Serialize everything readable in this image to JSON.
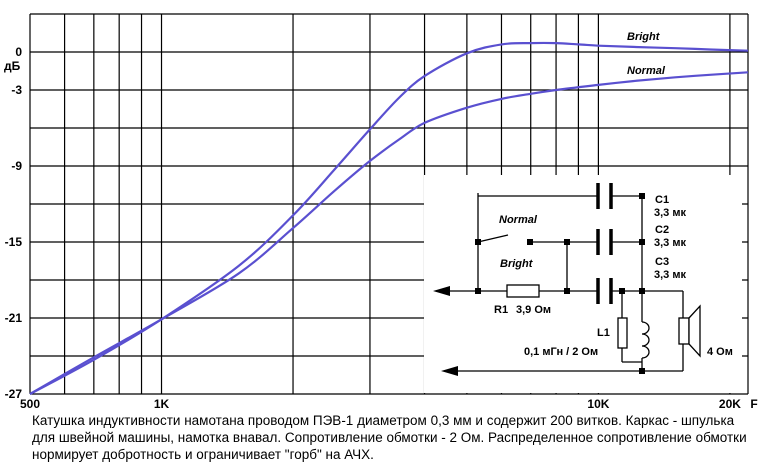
{
  "chart_data": {
    "type": "line",
    "xlabel": "F",
    "ylabel": "дБ",
    "x_scale": "log",
    "xlim": [
      500,
      22000
    ],
    "ylim": [
      -27,
      3
    ],
    "grid": true,
    "x_ticks": [
      {
        "value": 500,
        "label": "500"
      },
      {
        "value": 1000,
        "label": "1K"
      },
      {
        "value": 10000,
        "label": "10K"
      },
      {
        "value": 20000,
        "label": "20K"
      }
    ],
    "x_grid": [
      500,
      600,
      700,
      800,
      900,
      1000,
      2000,
      3000,
      4000,
      5000,
      6000,
      7000,
      8000,
      9000,
      10000,
      20000
    ],
    "y_ticks": [
      {
        "value": 0,
        "label": "0"
      },
      {
        "value": -3,
        "label": "-3"
      },
      {
        "value": -9,
        "label": "-9"
      },
      {
        "value": -15,
        "label": "-15"
      },
      {
        "value": -21,
        "label": "-21"
      },
      {
        "value": -27,
        "label": "-27"
      }
    ],
    "y_grid": [
      3,
      0,
      -3,
      -6,
      -9,
      -12,
      -15,
      -18,
      -21,
      -24,
      -27
    ],
    "series": [
      {
        "name": "Bright",
        "color": "#5a50d0",
        "x": [
          500,
          700,
          1000,
          1500,
          2000,
          2500,
          3000,
          3500,
          4000,
          5000,
          6000,
          7000,
          8000,
          9000,
          10000,
          12000,
          15000,
          18000,
          22000
        ],
        "y": [
          -27,
          -24.3,
          -21.1,
          -16.9,
          -12.9,
          -9.2,
          -6.1,
          -3.6,
          -1.9,
          -0.1,
          0.6,
          0.7,
          0.7,
          0.6,
          0.5,
          0.4,
          0.3,
          0.2,
          0.1
        ]
      },
      {
        "name": "Normal",
        "color": "#5a50d0",
        "x": [
          500,
          700,
          1000,
          1500,
          2000,
          2500,
          3000,
          3500,
          4000,
          5000,
          6000,
          7000,
          8000,
          10000,
          12000,
          15000,
          18000,
          22000
        ],
        "y": [
          -27,
          -24.1,
          -21.1,
          -17.5,
          -13.9,
          -10.9,
          -8.6,
          -6.9,
          -5.6,
          -4.4,
          -3.7,
          -3.3,
          -3.0,
          -2.6,
          -2.3,
          -2.0,
          -1.8,
          -1.6
        ]
      }
    ]
  },
  "schematic": {
    "switch_normal": "Normal",
    "switch_bright": "Bright",
    "r1_name": "R1",
    "r1_value": "3,9 Ом",
    "c1_name": "C1",
    "c1_value": "3,3 мк",
    "c2_name": "C2",
    "c2_value": "3,3 мк",
    "c3_name": "C3",
    "c3_value": "3,3 мк",
    "l1_name": "L1",
    "l1_value": "0,1 мГн / 2 Ом",
    "speaker_value": "4 Ом"
  },
  "caption": "Катушка индуктивности намотана проводом ПЭВ-1 диаметром 0,3 мм и содержит 200 витков. Каркас - шпулька для швейной машины, намотка внавал. Сопротивление обмотки - 2 Ом. Распределенное сопротивление обмотки нормирует добротность и ограничивает \"горб\" на АЧХ."
}
